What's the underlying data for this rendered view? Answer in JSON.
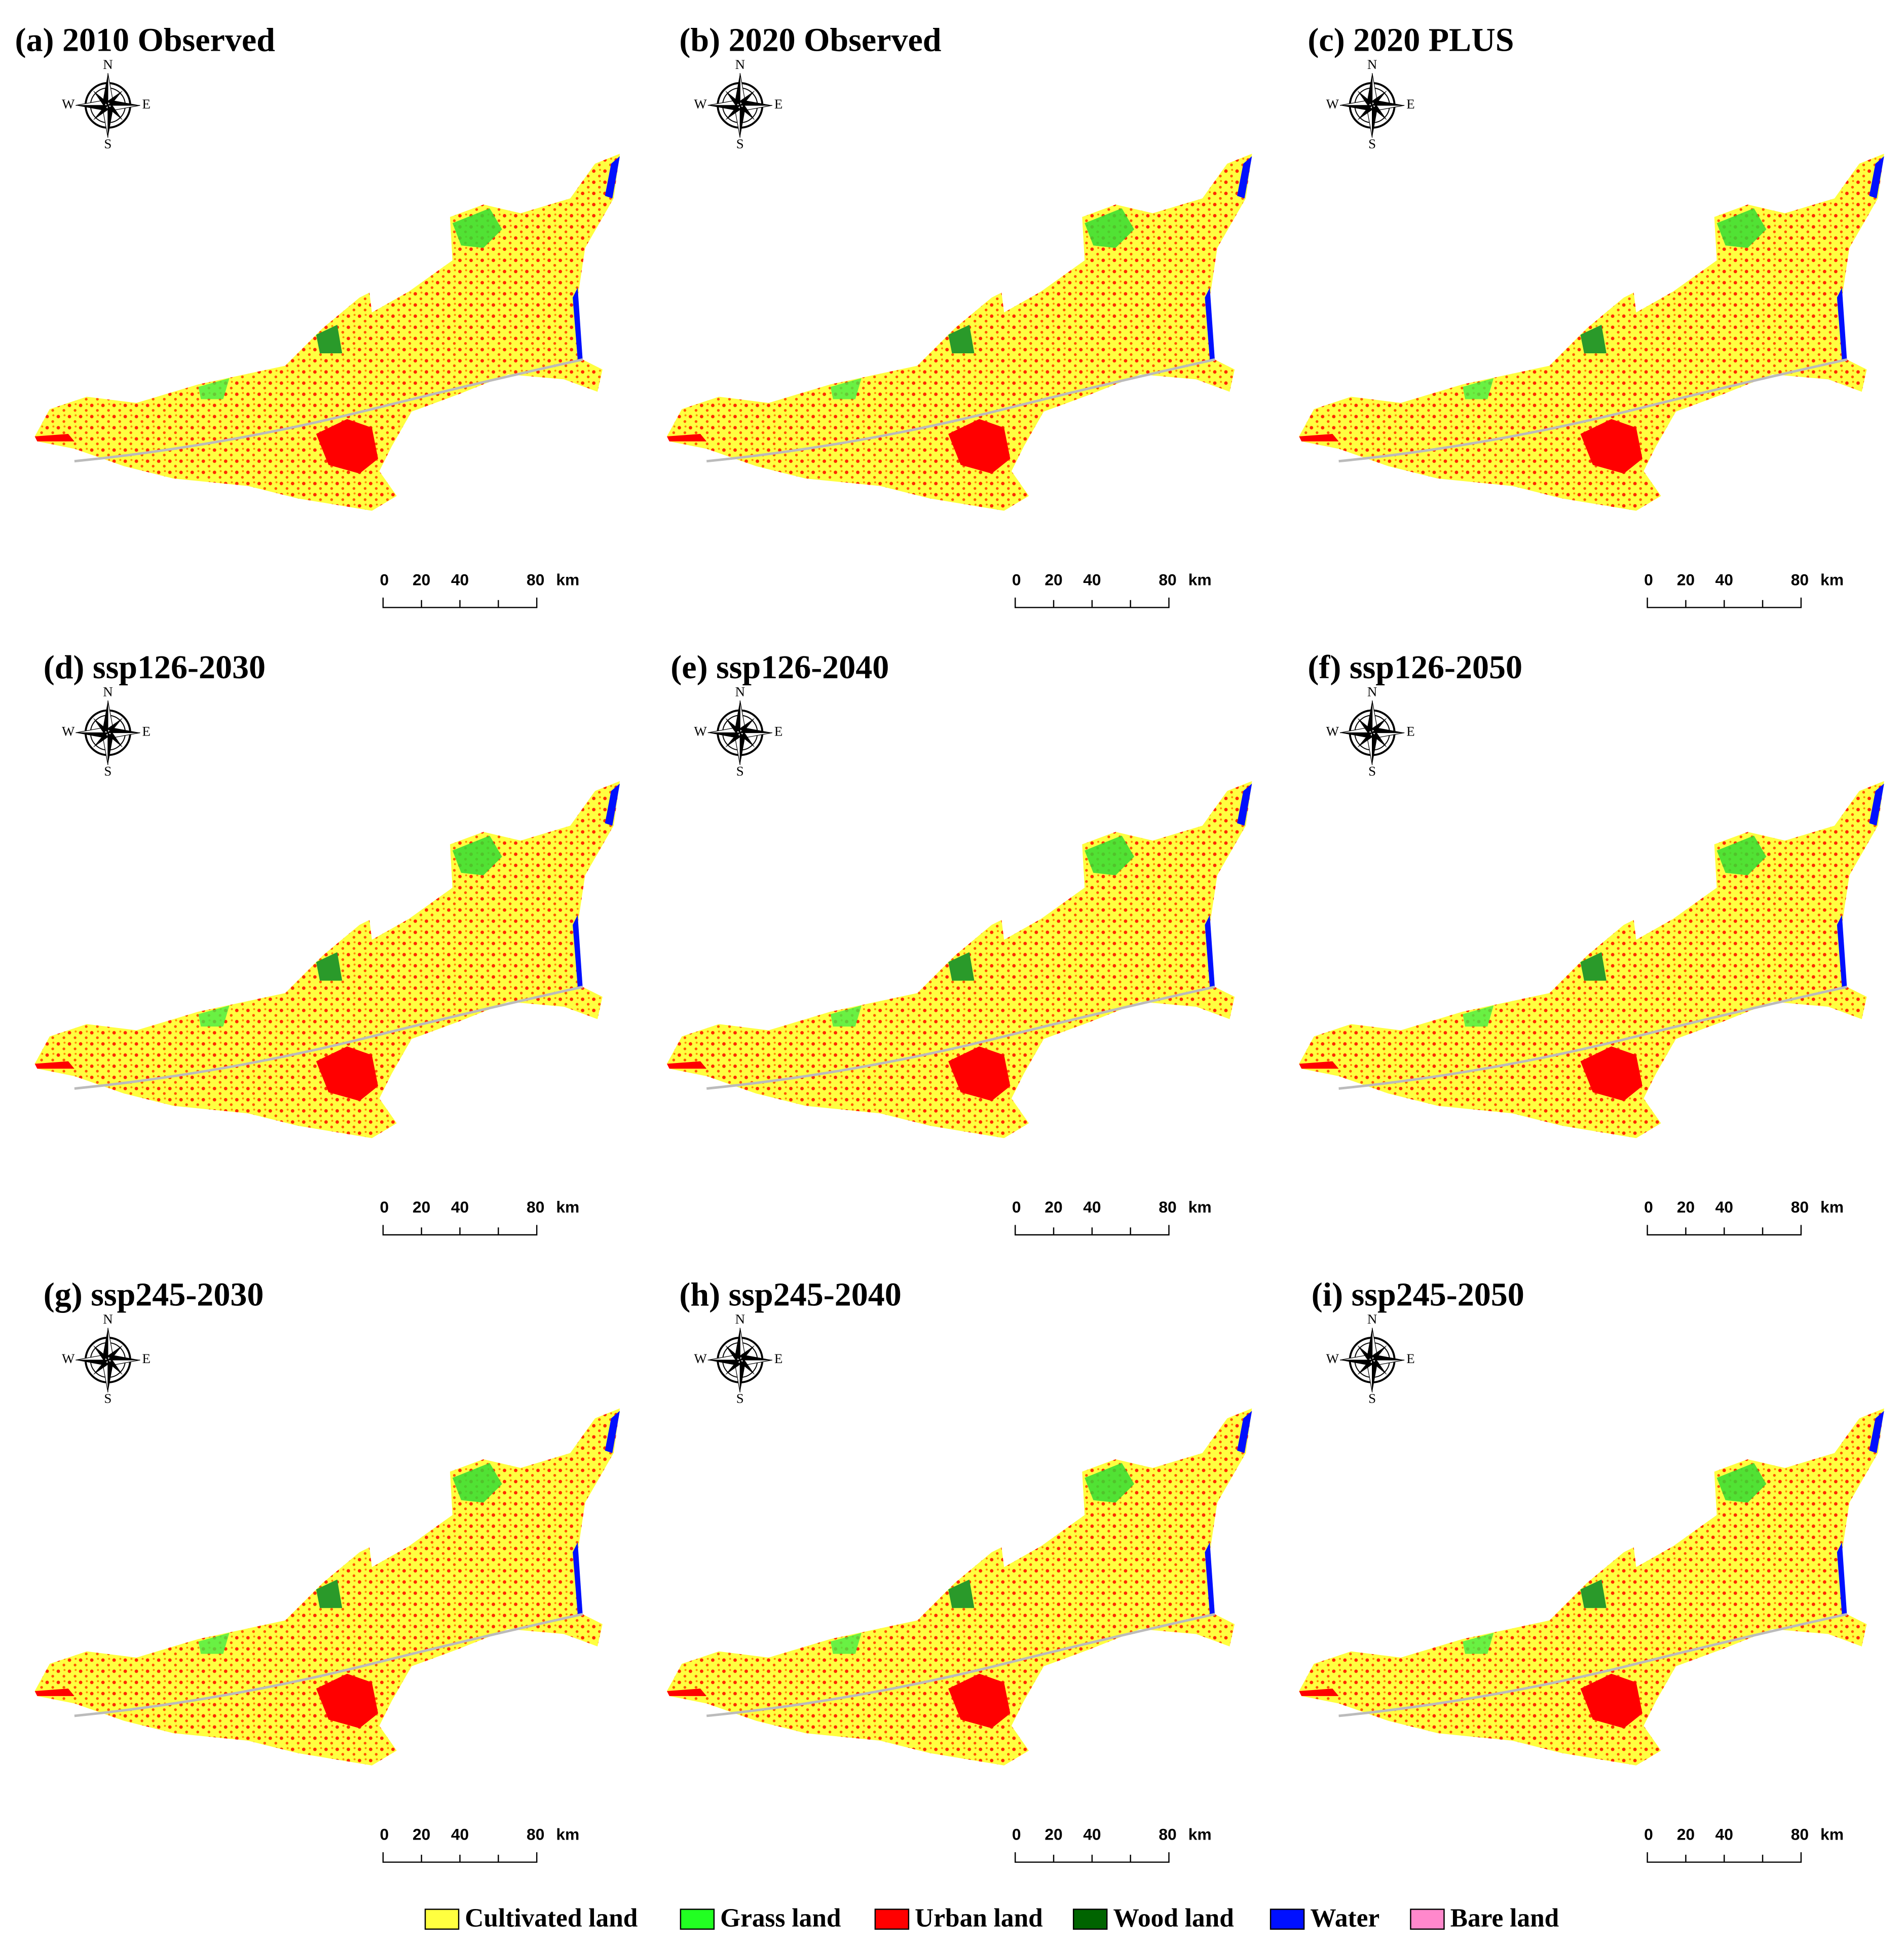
{
  "panels": [
    {
      "title": "(a) 2010 Observed"
    },
    {
      "title": "(b) 2020 Observed"
    },
    {
      "title": "(c) 2020 PLUS"
    },
    {
      "title": "(d) ssp126-2030"
    },
    {
      "title": "(e) ssp126-2040"
    },
    {
      "title": "(f) ssp126-2050"
    },
    {
      "title": "(g) ssp245-2030"
    },
    {
      "title": "(h) ssp245-2040"
    },
    {
      "title": "(i) ssp245-2050"
    }
  ],
  "compass": {
    "north": "N",
    "east": "E",
    "south": "S",
    "west": "W"
  },
  "scale_bar": {
    "ticks": [
      "0",
      "20",
      "40",
      "80"
    ],
    "unit": "km"
  },
  "legend": [
    {
      "label": "Cultivated land",
      "color": "#ffff40"
    },
    {
      "label": "Grass land",
      "color": "#22ff22"
    },
    {
      "label": "Urban land",
      "color": "#ff0000"
    },
    {
      "label": "Wood land",
      "color": "#006400"
    },
    {
      "label": "Water",
      "color": "#0010ff"
    },
    {
      "label": "Bare land",
      "color": "#ff88cc"
    }
  ]
}
